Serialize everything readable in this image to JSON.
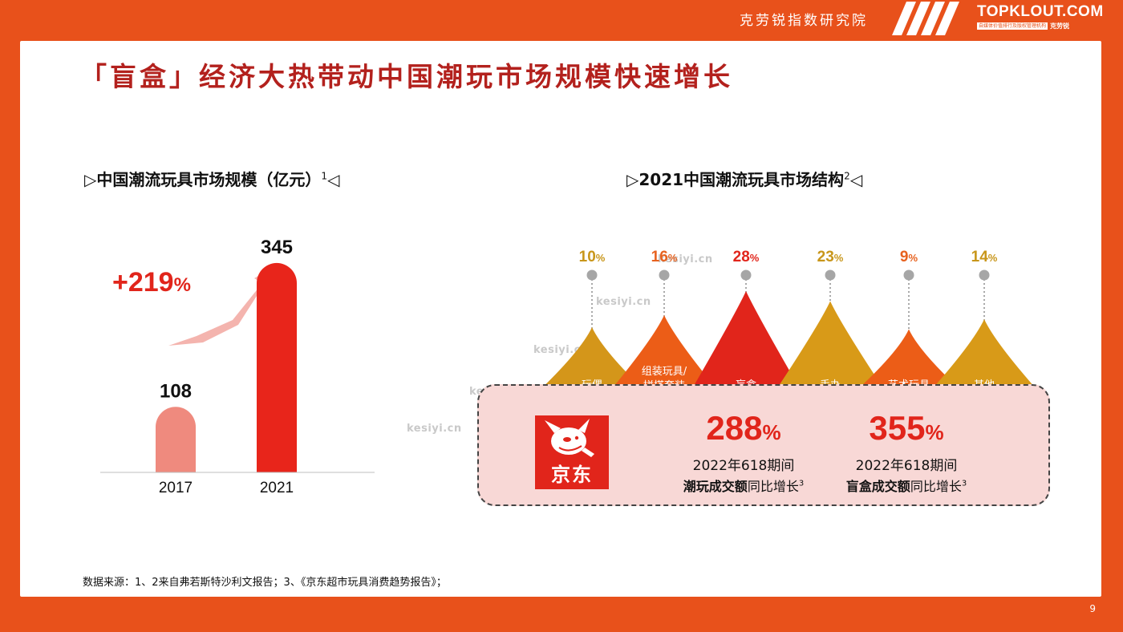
{
  "header": {
    "org_name": "克劳锐指数研究院",
    "brand_name": "TOPKLOUT.COM",
    "brand_tagline": "自媒体价值排行及版权管理机构",
    "brand_cn": "克劳锐"
  },
  "title": "「盲盒」经济大热带动中国潮玩市场规模快速增长",
  "market_size": {
    "section_title": "中国潮流玩具市场规模（亿元）",
    "footnote": "1",
    "growth_label": "+219",
    "growth_unit": "%",
    "colors": {
      "bar_2017": "#ef8a7e",
      "bar_2021": "#e8251b",
      "arrow": "#f4b4ae",
      "growth_text": "#e1251b"
    }
  },
  "chart_data": {
    "type": "bar",
    "categories": [
      "2017",
      "2021"
    ],
    "values": [
      108,
      345
    ],
    "ylim": [
      0,
      370
    ]
  },
  "structure": {
    "section_title": "2021中国潮流玩具市场结构",
    "footnote": "2",
    "segments": [
      {
        "label": "玩偶",
        "label_line2": "",
        "value": "10",
        "unit": "%",
        "share": 10,
        "color": "#d4961a",
        "value_color": "#c8961a"
      },
      {
        "label": "组装玩具/",
        "label_line2": "拼搭套装",
        "value": "16",
        "unit": "%",
        "share": 16,
        "color": "#ec5d17",
        "value_color": "#e7621f"
      },
      {
        "label": "盲盒",
        "label_line2": "",
        "value": "28",
        "unit": "%",
        "share": 28,
        "color": "#e1251b",
        "value_color": "#e1251b"
      },
      {
        "label": "手办",
        "label_line2": "",
        "value": "23",
        "unit": "%",
        "share": 23,
        "color": "#d89a18",
        "value_color": "#c8961a"
      },
      {
        "label": "艺术玩具",
        "label_line2": "",
        "value": "9",
        "unit": "%",
        "share": 9,
        "color": "#ec5d17",
        "value_color": "#e7621f"
      },
      {
        "label": "其他",
        "label_line2": "",
        "value": "14",
        "unit": "%",
        "share": 14,
        "color": "#d89a18",
        "value_color": "#c8961a"
      }
    ]
  },
  "jd": {
    "logo_text": "京东",
    "stats": [
      {
        "value": "288",
        "unit": "%",
        "period": "2022年618期间",
        "desc_bold": "潮玩成交额",
        "desc_rest": "同比增长",
        "footnote": "3"
      },
      {
        "value": "355",
        "unit": "%",
        "period": "2022年618期间",
        "desc_bold": "盲盒成交额",
        "desc_rest": "同比增长",
        "footnote": "3"
      }
    ]
  },
  "watermark": "kesiyi.cn",
  "source": "数据来源：1、2来自弗若斯特沙利文报告；3、《京东超市玩具消费趋势报告》；",
  "page_number": "9"
}
